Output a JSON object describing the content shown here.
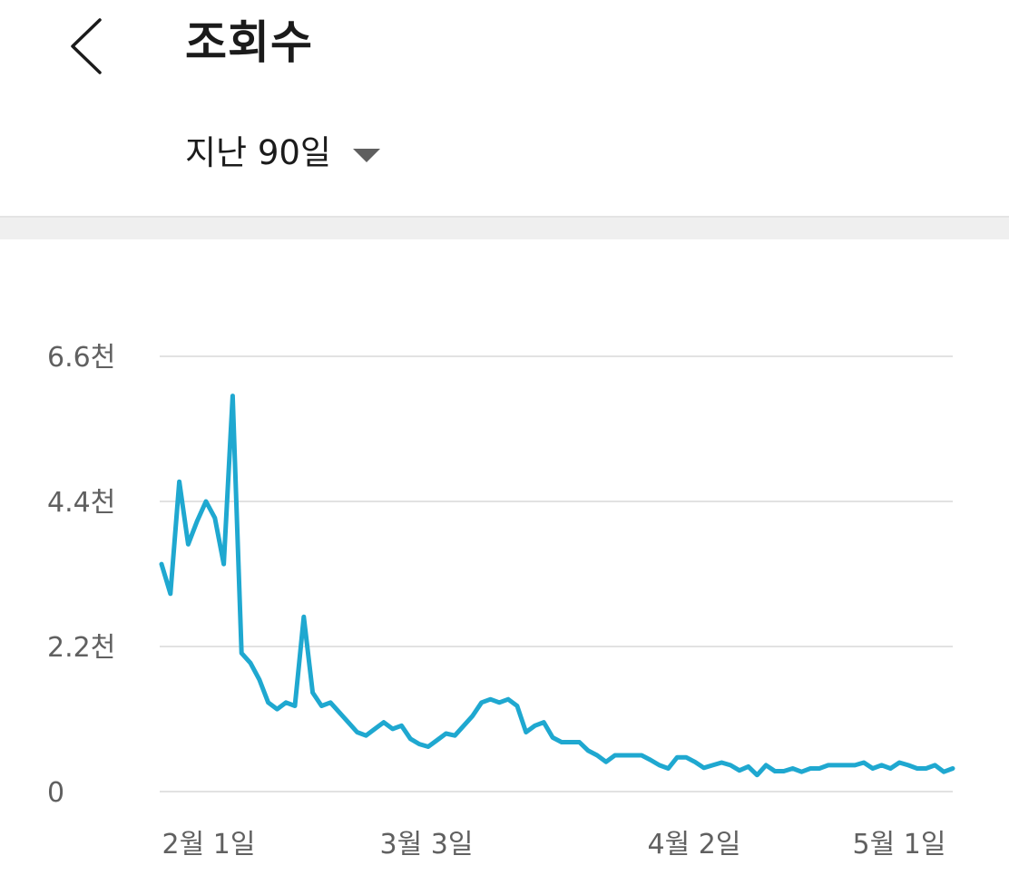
{
  "header": {
    "back_icon": "chevron-left-icon",
    "title": "조회수",
    "period_label": "지난 90일",
    "period_icon": "caret-down-icon"
  },
  "chart_data": {
    "type": "line",
    "title": "",
    "xlabel": "",
    "ylabel": "",
    "ylim": [
      0,
      6600
    ],
    "y_ticks": [
      0,
      2200,
      4400,
      6600
    ],
    "y_tick_labels": [
      "0",
      "2.2천",
      "4.4천",
      "6.6천"
    ],
    "x_ticks": [
      "2월 1일",
      "3월 3일",
      "4월 2일",
      "5월 1일"
    ],
    "x_range": [
      "1월 31일",
      "5월 3일"
    ],
    "grid": true,
    "line_color": "#1fa8d0",
    "series": [
      {
        "name": "",
        "values": [
          3450,
          3000,
          4700,
          3750,
          4100,
          4400,
          4150,
          3450,
          6000,
          2100,
          1950,
          1700,
          1350,
          1250,
          1350,
          1300,
          2650,
          1500,
          1300,
          1350,
          1200,
          1050,
          900,
          850,
          950,
          1050,
          950,
          1000,
          800,
          720,
          680,
          780,
          880,
          850,
          1000,
          1150,
          1350,
          1400,
          1350,
          1400,
          1300,
          900,
          1000,
          1050,
          820,
          750,
          750,
          750,
          620,
          550,
          450,
          550,
          550,
          550,
          550,
          480,
          400,
          350,
          520,
          520,
          450,
          360,
          400,
          440,
          400,
          320,
          380,
          250,
          400,
          310,
          310,
          350,
          300,
          350,
          350,
          400,
          400,
          400,
          400,
          440,
          350,
          400,
          350,
          440,
          400,
          350,
          350,
          400,
          300,
          350
        ]
      }
    ]
  }
}
